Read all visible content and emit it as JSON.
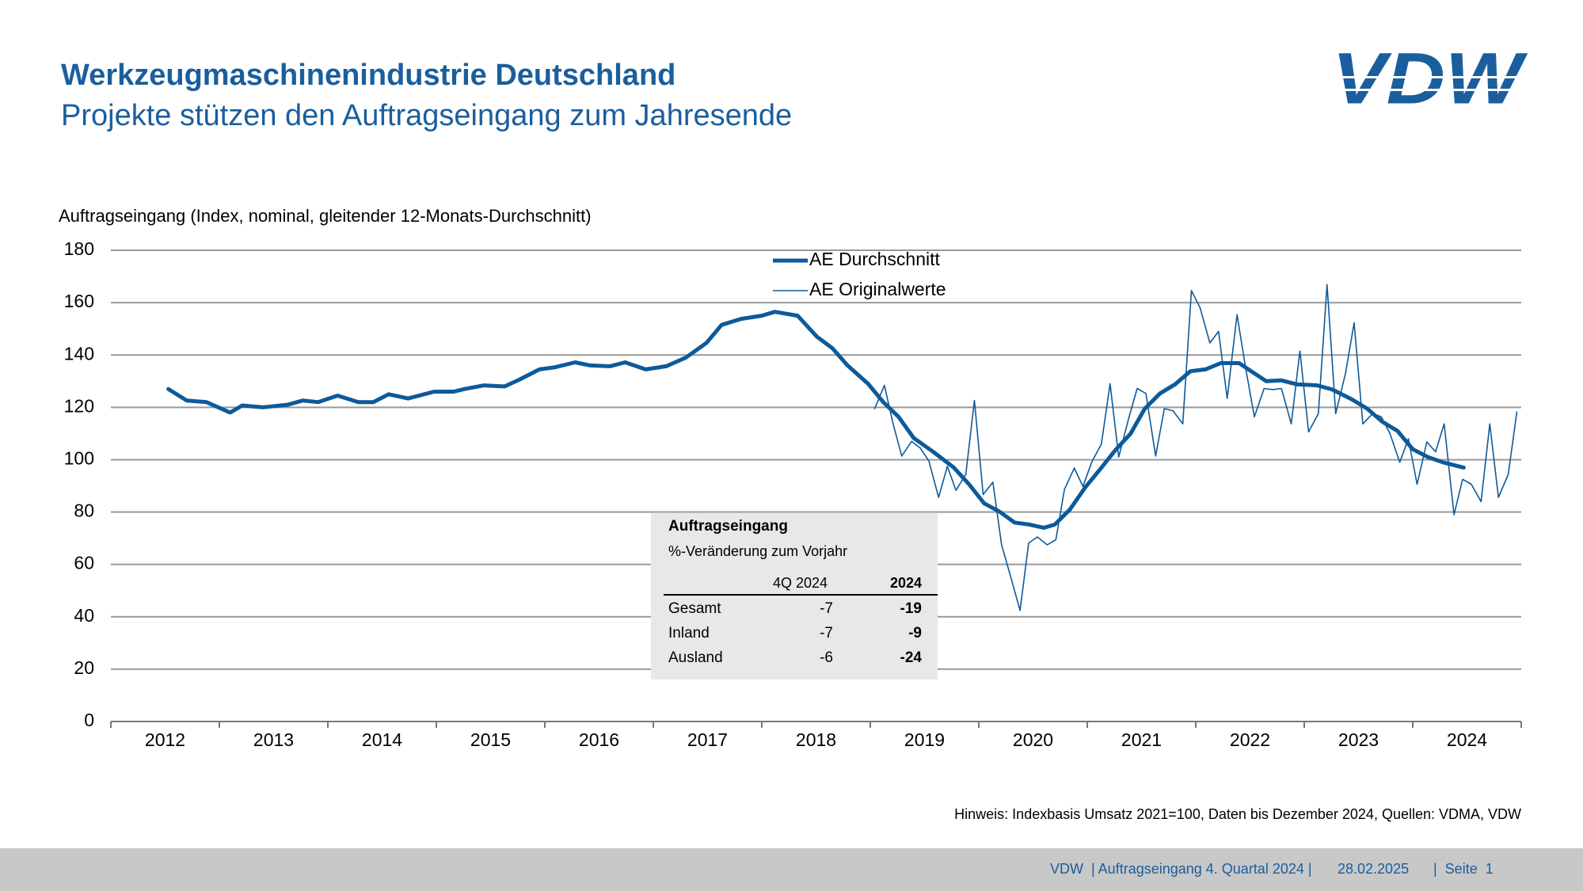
{
  "header": {
    "title": "Werkzeugmaschinenindustrie Deutschland",
    "subtitle": "Projekte stützen den Auftragseingang zum Jahresende",
    "logo": "VDW"
  },
  "chart_data": {
    "type": "line",
    "y_label": "Auftragseingang (Index, nominal, gleitender 12-Monats-Durchschnitt)",
    "xlim": [
      2012,
      2025
    ],
    "xticks": [
      {
        "value": 2012,
        "label": "2012"
      },
      {
        "value": 2013,
        "label": "2013"
      },
      {
        "value": 2014,
        "label": "2014"
      },
      {
        "value": 2015,
        "label": "2015"
      },
      {
        "value": 2016,
        "label": "2016"
      },
      {
        "value": 2017,
        "label": "2017"
      },
      {
        "value": 2018,
        "label": "2018"
      },
      {
        "value": 2019,
        "label": "2019"
      },
      {
        "value": 2020,
        "label": "2020"
      },
      {
        "value": 2021,
        "label": "2021"
      },
      {
        "value": 2022,
        "label": "2022"
      },
      {
        "value": 2023,
        "label": "2023"
      },
      {
        "value": 2024,
        "label": "2024"
      }
    ],
    "ylim": [
      0,
      180
    ],
    "yticks": [
      0,
      20,
      40,
      60,
      80,
      100,
      120,
      140,
      160,
      180
    ],
    "grid": true,
    "legend": "upper center",
    "series": [
      {
        "name": "AE Durchschnitt",
        "color": "#0d5a9a",
        "width": 5,
        "x": [
          2012.53,
          2012.7,
          2012.88,
          2013.1,
          2013.21,
          2013.4,
          2013.63,
          2013.77,
          2013.91,
          2014.09,
          2014.28,
          2014.42,
          2014.56,
          2014.74,
          2014.98,
          2015.16,
          2015.26,
          2015.44,
          2015.63,
          2015.77,
          2015.95,
          2016.09,
          2016.28,
          2016.42,
          2016.6,
          2016.74,
          2016.93,
          2017.12,
          2017.3,
          2017.49,
          2017.63,
          2017.81,
          2018.0,
          2018.12,
          2018.33,
          2018.51,
          2018.65,
          2018.79,
          2018.98,
          2019.12,
          2019.26,
          2019.4,
          2019.58,
          2019.77,
          2019.91,
          2020.05,
          2020.19,
          2020.33,
          2020.47,
          2020.6,
          2020.7,
          2020.84,
          2020.98,
          2021.12,
          2021.26,
          2021.4,
          2021.53,
          2021.67,
          2021.81,
          2021.95,
          2022.09,
          2022.23,
          2022.4,
          2022.51,
          2022.65,
          2022.79,
          2022.93,
          2023.12,
          2023.26,
          2023.44,
          2023.58,
          2023.72,
          2023.86,
          2024.0,
          2024.14,
          2024.28,
          2024.47
        ],
        "values": [
          127,
          122.6,
          122,
          118,
          120.7,
          120,
          121,
          122.6,
          122,
          124.5,
          122,
          122,
          125,
          123.4,
          126,
          126,
          127,
          128.4,
          128,
          130.7,
          134.5,
          135.3,
          137.2,
          136,
          135.7,
          137.2,
          134.5,
          135.7,
          139,
          144.6,
          151.5,
          153.8,
          155,
          156.5,
          155,
          146.9,
          142.6,
          136,
          129,
          122,
          116.4,
          108.3,
          103,
          97,
          90.6,
          83.3,
          80.2,
          76,
          75.2,
          74,
          75.2,
          81,
          89.4,
          96.4,
          103.7,
          110,
          119.5,
          125.3,
          128.8,
          133.8,
          134.5,
          136.9,
          136.9,
          133.8,
          130,
          130.3,
          128.8,
          128.4,
          126.8,
          123,
          119.5,
          114.5,
          111,
          104,
          101,
          99,
          97
        ]
      },
      {
        "name": "AE Originalwerte",
        "color": "#0d5a9a",
        "width": 1.6,
        "x": [
          2019.04,
          2019.13,
          2019.21,
          2019.29,
          2019.38,
          2019.46,
          2019.54,
          2019.63,
          2019.71,
          2019.79,
          2019.88,
          2019.96,
          2020.04,
          2020.13,
          2020.21,
          2020.29,
          2020.38,
          2020.46,
          2020.54,
          2020.63,
          2020.71,
          2020.79,
          2020.88,
          2020.96,
          2021.04,
          2021.13,
          2021.21,
          2021.29,
          2021.38,
          2021.46,
          2021.54,
          2021.63,
          2021.71,
          2021.79,
          2021.88,
          2021.96,
          2022.04,
          2022.13,
          2022.21,
          2022.29,
          2022.38,
          2022.46,
          2022.54,
          2022.63,
          2022.71,
          2022.79,
          2022.88,
          2022.96,
          2023.04,
          2023.13,
          2023.21,
          2023.29,
          2023.38,
          2023.46,
          2023.54,
          2023.63,
          2023.71,
          2023.79,
          2023.88,
          2023.96,
          2024.04,
          2024.13,
          2024.21,
          2024.29,
          2024.38,
          2024.46,
          2024.54,
          2024.63,
          2024.71,
          2024.79,
          2024.88,
          2024.96
        ],
        "values": [
          119.5,
          128.4,
          113.7,
          101.4,
          107,
          104.5,
          99.5,
          85.6,
          97.5,
          88.3,
          94.4,
          122.6,
          86.7,
          91.4,
          67.5,
          55.9,
          42.4,
          68.2,
          70.5,
          67.5,
          69.4,
          88.7,
          96.8,
          89.8,
          99,
          106,
          129,
          101,
          115.6,
          127.2,
          125.3,
          101.4,
          119.5,
          118.7,
          113.7,
          164.6,
          158,
          144.6,
          149,
          123.4,
          155.4,
          135,
          116.4,
          127.2,
          126.8,
          127.2,
          113.7,
          141.5,
          110.6,
          117.6,
          166.9,
          117.6,
          133,
          152.3,
          113.7,
          117.6,
          116.4,
          110,
          99,
          108,
          90.6,
          106.8,
          103,
          113.7,
          79,
          92.5,
          90.6,
          84,
          113.7,
          85.6,
          94.4,
          118.3
        ]
      }
    ]
  },
  "table": {
    "title": "Auftragseingang",
    "subtitle": "%-Veränderung zum Vorjahr",
    "columns": [
      "4Q 2024",
      "2024"
    ],
    "rows": [
      {
        "label": "Gesamt",
        "values": [
          -7,
          -19
        ]
      },
      {
        "label": "Inland",
        "values": [
          -7,
          -9
        ]
      },
      {
        "label": "Ausland",
        "values": [
          -6,
          -24
        ]
      }
    ]
  },
  "note": "Hinweis: Indexbasis Umsatz 2021=100, Daten bis Dezember 2024, Quellen: VDMA, VDW",
  "footer": {
    "parts": [
      "VDW  | Auftragseingang 4. Quartal 2024 |",
      "28.02.2025",
      "|  Seite  1"
    ]
  }
}
